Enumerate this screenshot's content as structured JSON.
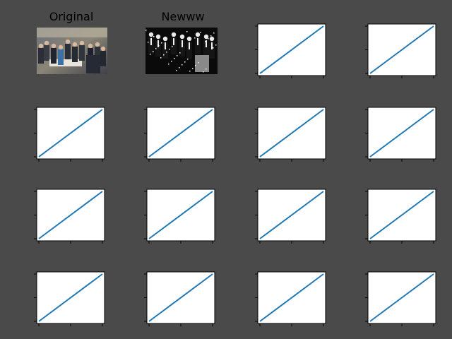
{
  "figure": {
    "background": "#4a4a4a",
    "axes_background": "#ffffff",
    "line_color": "#1f77b4"
  },
  "chart_data": [
    {
      "type": "image",
      "title": "Original",
      "image": "photo-group-around-table"
    },
    {
      "type": "image",
      "title": "Newww",
      "image": "photo-group-inverted-contrast"
    },
    {
      "type": "line",
      "x": [
        0,
        1
      ],
      "y": [
        0,
        1
      ],
      "xticks": 3,
      "yticks": 3
    },
    {
      "type": "line",
      "x": [
        0,
        1
      ],
      "y": [
        0,
        1
      ],
      "xticks": 3,
      "yticks": 3
    },
    {
      "type": "line",
      "x": [
        0,
        1
      ],
      "y": [
        0,
        1
      ],
      "xticks": 3,
      "yticks": 3
    },
    {
      "type": "line",
      "x": [
        0,
        1
      ],
      "y": [
        0,
        1
      ],
      "xticks": 3,
      "yticks": 3
    },
    {
      "type": "line",
      "x": [
        0,
        1
      ],
      "y": [
        0,
        1
      ],
      "xticks": 3,
      "yticks": 3
    },
    {
      "type": "line",
      "x": [
        0,
        1
      ],
      "y": [
        0,
        1
      ],
      "xticks": 3,
      "yticks": 3
    },
    {
      "type": "line",
      "x": [
        0,
        1
      ],
      "y": [
        0,
        1
      ],
      "xticks": 3,
      "yticks": 3
    },
    {
      "type": "line",
      "x": [
        0,
        1
      ],
      "y": [
        0,
        1
      ],
      "xticks": 3,
      "yticks": 3
    },
    {
      "type": "line",
      "x": [
        0,
        1
      ],
      "y": [
        0,
        1
      ],
      "xticks": 3,
      "yticks": 3
    },
    {
      "type": "line",
      "x": [
        0,
        1
      ],
      "y": [
        0,
        1
      ],
      "xticks": 3,
      "yticks": 3
    },
    {
      "type": "line",
      "x": [
        0,
        1
      ],
      "y": [
        0,
        1
      ],
      "xticks": 3,
      "yticks": 3
    },
    {
      "type": "line",
      "x": [
        0,
        1
      ],
      "y": [
        0,
        1
      ],
      "xticks": 3,
      "yticks": 3
    },
    {
      "type": "line",
      "x": [
        0,
        1
      ],
      "y": [
        0,
        1
      ],
      "xticks": 3,
      "yticks": 3
    },
    {
      "type": "line",
      "x": [
        0,
        1
      ],
      "y": [
        0,
        1
      ],
      "xticks": 3,
      "yticks": 3
    }
  ]
}
